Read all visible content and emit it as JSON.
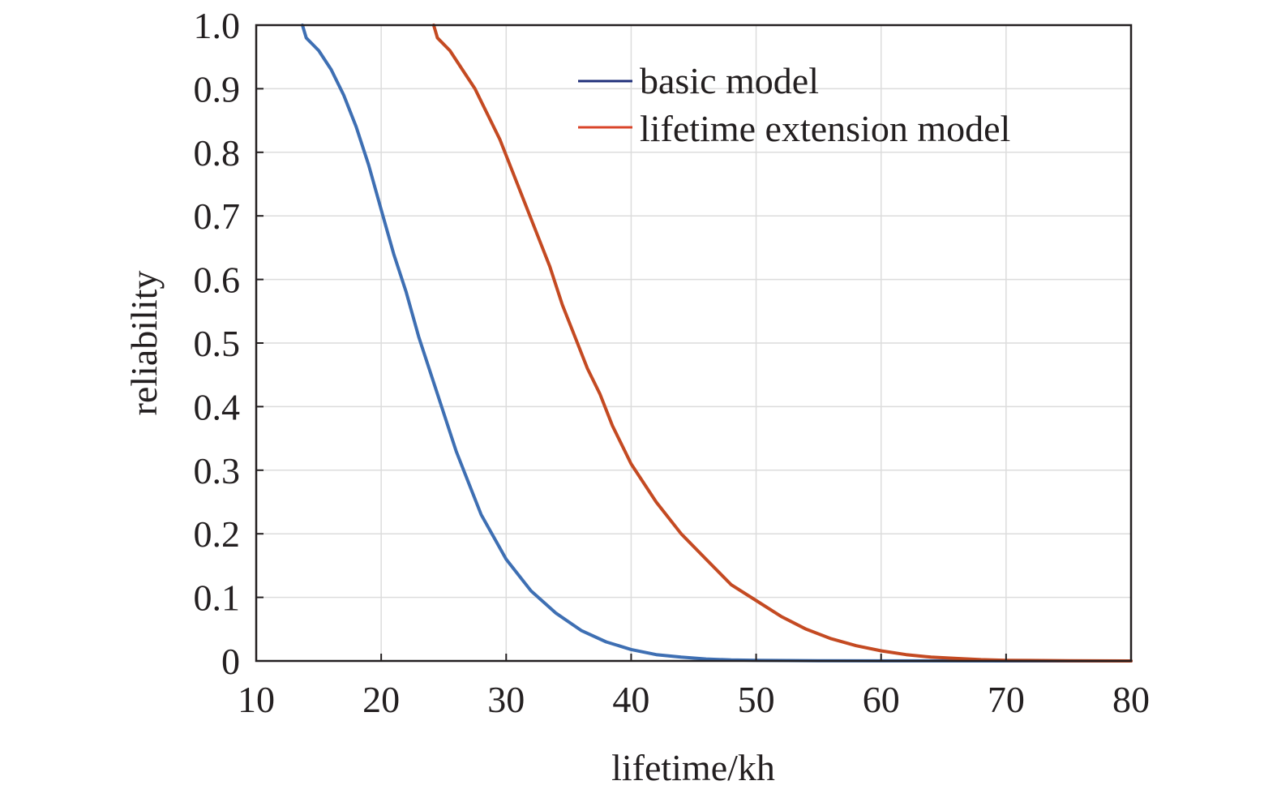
{
  "chart_data": {
    "type": "line",
    "title": "",
    "xlabel": "lifetime/kh",
    "ylabel": "reliability",
    "xlim": [
      10,
      80
    ],
    "ylim": [
      0,
      1.0
    ],
    "xticks": [
      "10",
      "20",
      "30",
      "40",
      "50",
      "60",
      "70",
      "80"
    ],
    "yticks": [
      "0",
      "0.1",
      "0.2",
      "0.3",
      "0.4",
      "0.5",
      "0.6",
      "0.7",
      "0.8",
      "0.9",
      "1.0"
    ],
    "grid": true,
    "legend_position": "top-right",
    "series": [
      {
        "name": "basic model",
        "color": "#3e6fb3",
        "legend_color": "#1f2f7a",
        "x": [
          13.7,
          14,
          15,
          16,
          17,
          18,
          19,
          20,
          21,
          22,
          23,
          24,
          25,
          26,
          27,
          28,
          29,
          30,
          32,
          34,
          36,
          38,
          40,
          42,
          44,
          46,
          48,
          50,
          55,
          60,
          70,
          80
        ],
        "y": [
          1.0,
          0.98,
          0.96,
          0.93,
          0.89,
          0.84,
          0.78,
          0.71,
          0.64,
          0.58,
          0.51,
          0.45,
          0.39,
          0.33,
          0.28,
          0.23,
          0.195,
          0.16,
          0.11,
          0.075,
          0.048,
          0.03,
          0.018,
          0.01,
          0.006,
          0.003,
          0.0015,
          0.001,
          0.0003,
          0.0001,
          0.0,
          0.0
        ]
      },
      {
        "name": "lifetime extension model",
        "color": "#c44a22",
        "legend_color": "#d9452a",
        "x": [
          24.2,
          24.5,
          25.5,
          26.5,
          27.5,
          28.5,
          29.5,
          30.5,
          31.5,
          32.5,
          33.5,
          34.5,
          35.5,
          36.5,
          37.5,
          38.5,
          39.5,
          40,
          42,
          44,
          46,
          48,
          50,
          52,
          54,
          56,
          58,
          60,
          62,
          64,
          66,
          68,
          70,
          75,
          80
        ],
        "y": [
          1.0,
          0.98,
          0.96,
          0.93,
          0.9,
          0.86,
          0.82,
          0.77,
          0.72,
          0.67,
          0.62,
          0.56,
          0.51,
          0.46,
          0.42,
          0.37,
          0.33,
          0.31,
          0.25,
          0.2,
          0.16,
          0.12,
          0.095,
          0.07,
          0.05,
          0.035,
          0.024,
          0.016,
          0.01,
          0.006,
          0.004,
          0.002,
          0.001,
          0.0003,
          0.0
        ]
      }
    ]
  }
}
